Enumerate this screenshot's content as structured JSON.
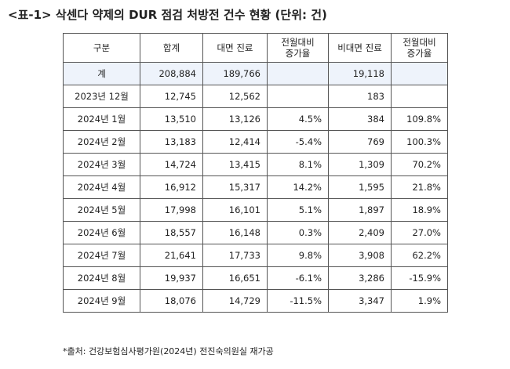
{
  "title": "<표-1> 삭센다 약제의 DUR 점검 처방전 건수 현황 (단위: 건)",
  "table": {
    "header": [
      "구분",
      "합계",
      "대면 진료",
      "전월대비\n증가율",
      "비대면 진료",
      "전월대비\n증가율"
    ],
    "rows": [
      [
        "계",
        "208,884",
        "189,766",
        null,
        "19,118",
        null
      ],
      [
        "2023년 12월",
        "12,745",
        "12,562",
        null,
        "183",
        null
      ],
      [
        "2024년 1월",
        "13,510",
        "13,126",
        "4.5%",
        "384",
        "109.8%"
      ],
      [
        "2024년 2월",
        "13,183",
        "12,414",
        "-5.4%",
        "769",
        "100.3%"
      ],
      [
        "2024년 3월",
        "14,724",
        "13,415",
        "8.1%",
        "1,309",
        "70.2%"
      ],
      [
        "2024년 4월",
        "16,912",
        "15,317",
        "14.2%",
        "1,595",
        "21.8%"
      ],
      [
        "2024년 5월",
        "17,998",
        "16,101",
        "5.1%",
        "1,897",
        "18.9%"
      ],
      [
        "2024년 6월",
        "18,557",
        "16,148",
        "0.3%",
        "2,409",
        "27.0%"
      ],
      [
        "2024년 7월",
        "21,641",
        "17,733",
        "9.8%",
        "3,908",
        "62.2%"
      ],
      [
        "2024년 8월",
        "19,937",
        "16,651",
        "-6.1%",
        "3,286",
        "-15.9%"
      ],
      [
        "2024년 9월",
        "18,076",
        "14,729",
        "-11.5%",
        "3,347",
        "1.9%"
      ]
    ]
  },
  "source": "*출처: 건강보험심사평가원(2024년) 전진숙의원실 재가공"
}
